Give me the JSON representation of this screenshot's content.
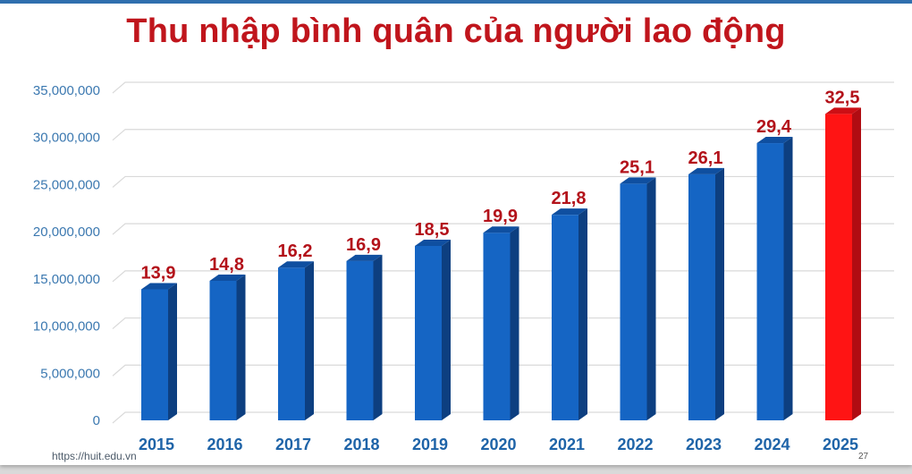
{
  "slide": {
    "title": "Thu nhập bình quân của người lao động",
    "footer_url": "https://huit.edu.vn",
    "page_number": "27"
  },
  "colors": {
    "title": "#c0151c",
    "bar": "#1565c4",
    "bar_side": "#0d3f80",
    "bar_top": "#0f4fa0",
    "highlight_bar": "#ff1414",
    "highlight_side": "#b00c12",
    "highlight_top": "#cc0f15",
    "data_label": "#b3121a",
    "y_tick": "#3b78b0",
    "x_tick": "#1f64a8",
    "grid": "#d9d9d9",
    "top_border": "#2f6fae"
  },
  "chart_data": {
    "type": "bar",
    "title": "Thu nhập bình quân của người lao động",
    "xlabel": "",
    "ylabel": "",
    "categories": [
      "2015",
      "2016",
      "2017",
      "2018",
      "2019",
      "2020",
      "2021",
      "2022",
      "2023",
      "2024",
      "2025"
    ],
    "values": [
      13900000,
      14800000,
      16200000,
      16900000,
      18500000,
      19900000,
      21800000,
      25100000,
      26100000,
      29400000,
      32500000
    ],
    "data_labels": [
      "13,9",
      "14,8",
      "16,2",
      "16,9",
      "18,5",
      "19,9",
      "21,8",
      "25,1",
      "26,1",
      "29,4",
      "32,5"
    ],
    "highlight_index": 10,
    "ylim": [
      0,
      35000000
    ],
    "yticks": [
      0,
      5000000,
      10000000,
      15000000,
      20000000,
      25000000,
      30000000,
      35000000
    ],
    "ytick_labels": [
      "0",
      "5,000,000",
      "10,000,000",
      "15,000,000",
      "20,000,000",
      "25,000,000",
      "30,000,000",
      "35,000,000"
    ],
    "grid": true,
    "legend": "none",
    "style": "3d-column"
  }
}
